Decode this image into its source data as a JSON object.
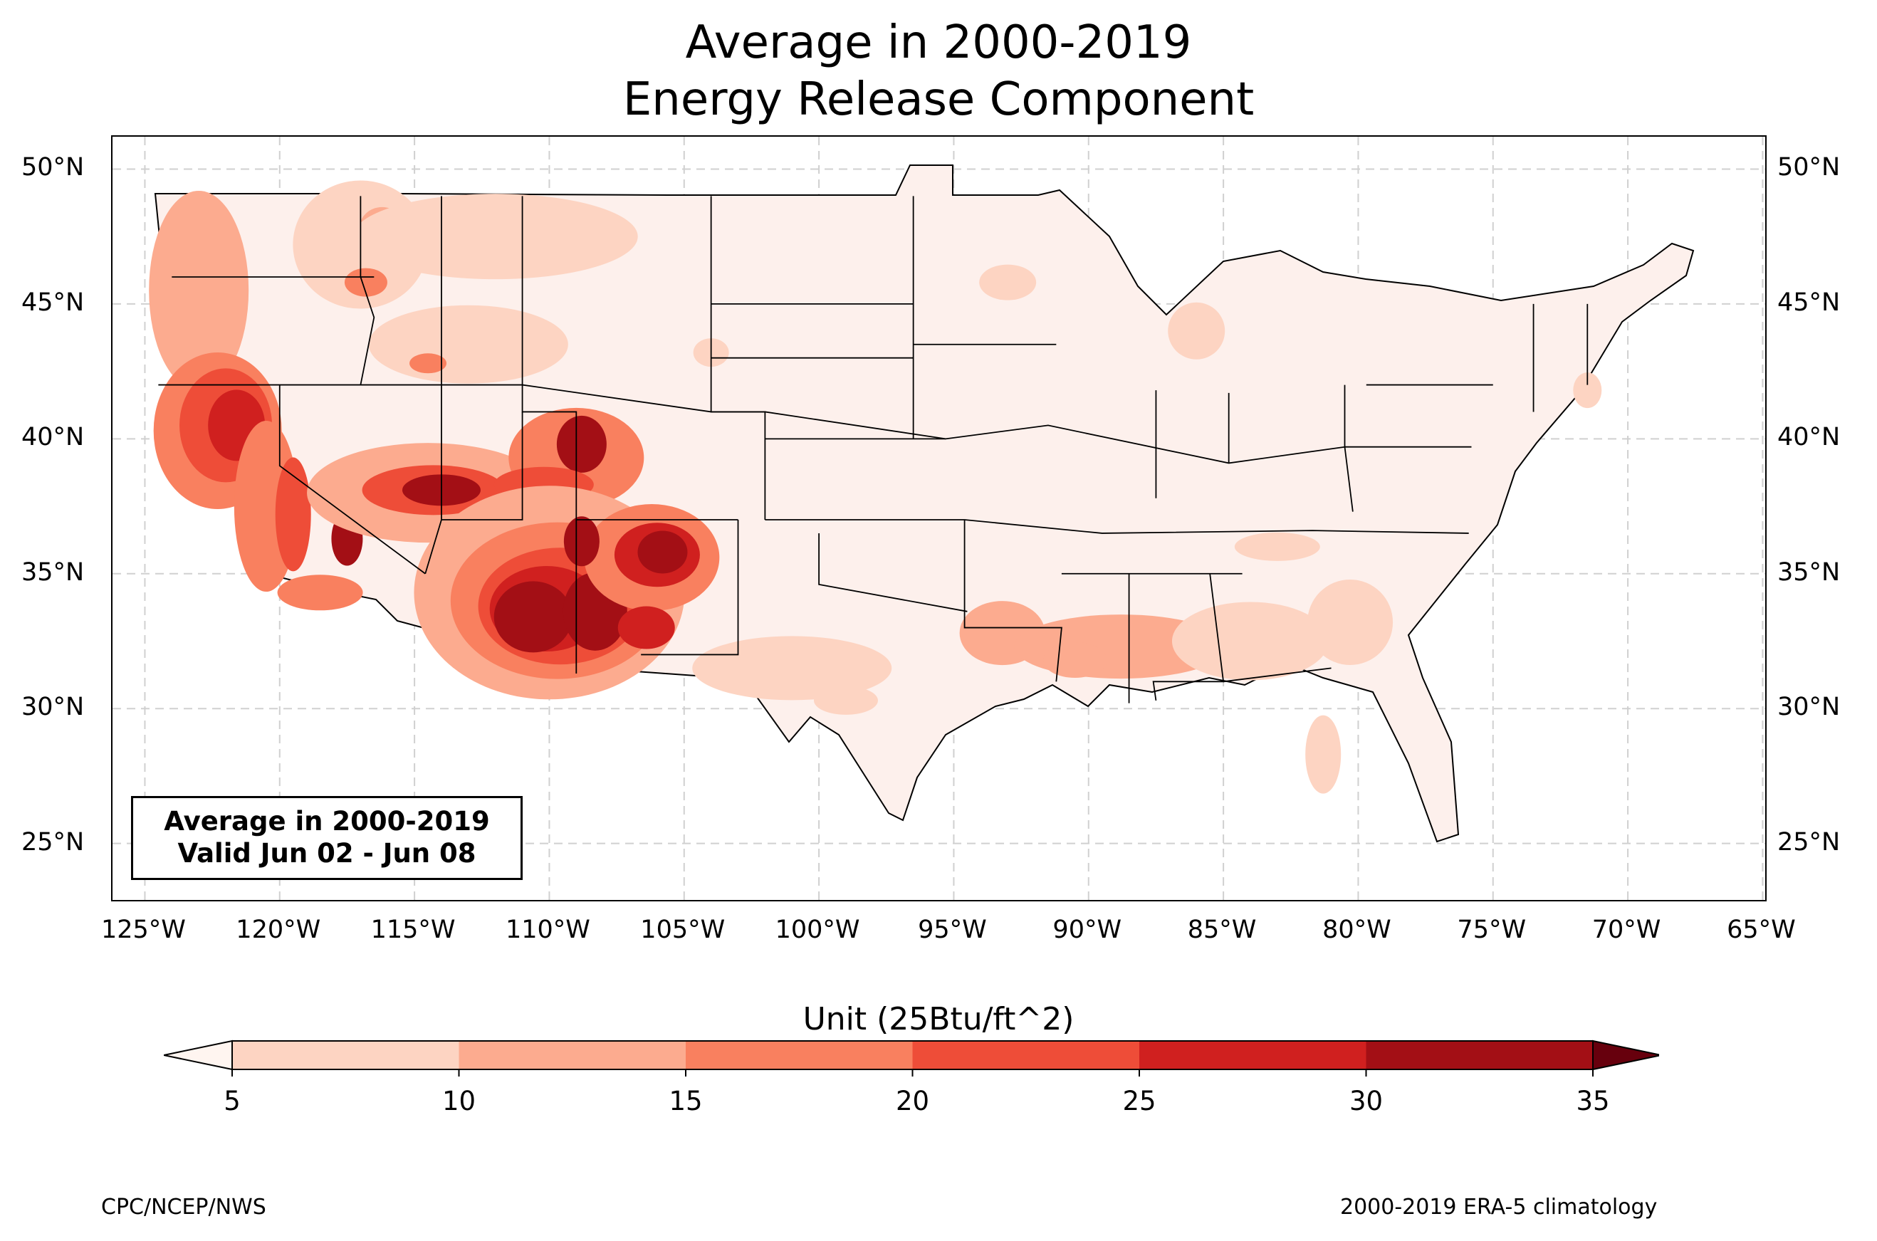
{
  "title": "Average in 2000-2019",
  "subtitle": "Energy Release Component",
  "info_box": {
    "line1": "Average in 2000-2019",
    "line2": "Valid Jun 02 - Jun 08"
  },
  "map": {
    "projection": "PlateCarree",
    "lon_range": [
      -126.2,
      -64.8
    ],
    "lat_range": [
      22.8,
      51.2
    ],
    "lat_ticks": [
      "25°N",
      "30°N",
      "35°N",
      "40°N",
      "45°N",
      "50°N"
    ],
    "lon_ticks": [
      "125°W",
      "120°W",
      "115°W",
      "110°W",
      "105°W",
      "100°W",
      "95°W",
      "90°W",
      "85°W",
      "80°W",
      "75°W",
      "70°W",
      "65°W"
    ],
    "gridlines": true,
    "background_fill": "#fdf0ec"
  },
  "colorbar": {
    "title": "Unit (25Btu/ft^2)",
    "ticks": [
      "5",
      "10",
      "15",
      "20",
      "25",
      "30",
      "35"
    ],
    "bins": [
      {
        "from": 5,
        "to": 10,
        "color": "#fdd4c2"
      },
      {
        "from": 10,
        "to": 15,
        "color": "#fcab8f"
      },
      {
        "from": 15,
        "to": 20,
        "color": "#f9805f"
      },
      {
        "from": 20,
        "to": 25,
        "color": "#ee4d38"
      },
      {
        "from": 25,
        "to": 30,
        "color": "#d0201f"
      },
      {
        "from": 30,
        "to": 35,
        "color": "#a30f15"
      }
    ],
    "under_color": "#fff5f0",
    "over_color": "#67000d",
    "extend": "both"
  },
  "footer": {
    "left": "CPC/NCEP/NWS",
    "right": "2000-2019 ERA-5 climatology"
  }
}
